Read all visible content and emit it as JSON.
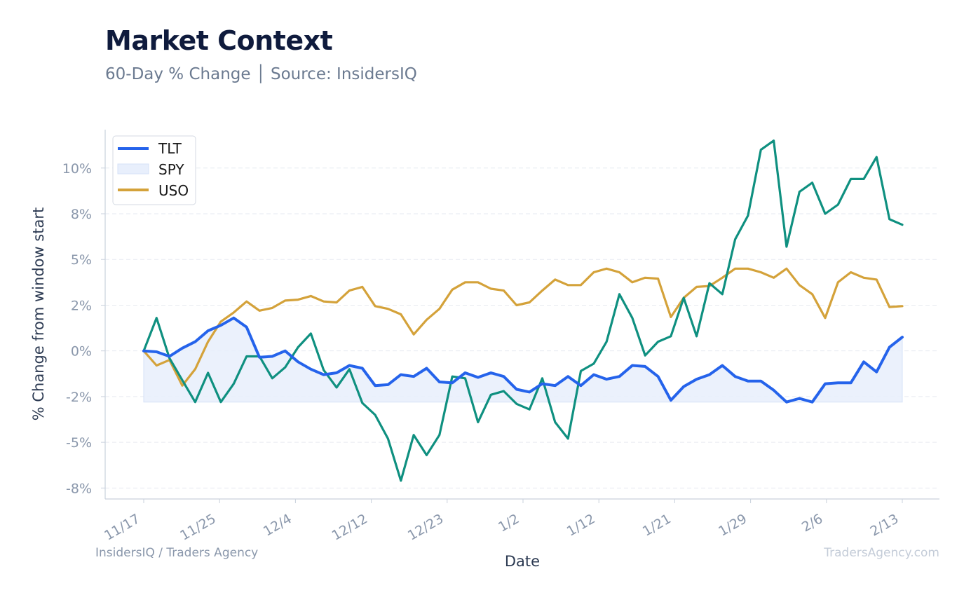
{
  "header": {
    "title": "Market Context",
    "subtitle": "60-Day % Change │ Source: InsidersIQ"
  },
  "footer": {
    "left": "InsidersIQ / Traders Agency",
    "right": "TradersAgency.com"
  },
  "colors": {
    "tlt": "#2563eb",
    "spy_fill": "#e8effc",
    "spy_line": "#0f9080",
    "uso": "#d4a23a",
    "grid": "#e6eaf0",
    "axis": "#c9d1dc"
  },
  "chart_data": {
    "type": "line",
    "xlabel": "Date",
    "ylabel": "% Change from window start",
    "x_ticks": [
      "11/17",
      "11/25",
      "12/4",
      "12/12",
      "12/23",
      "1/2",
      "1/12",
      "1/21",
      "1/29",
      "2/6",
      "2/13"
    ],
    "y_ticks": [
      "10%",
      "8%",
      "5%",
      "2%",
      "0%",
      "-2%",
      "-5%",
      "-8%"
    ],
    "y_tick_values": [
      10,
      7.5,
      5,
      2.5,
      0,
      -2.5,
      -5,
      -7.5
    ],
    "ylim": [
      -8.1,
      12.1
    ],
    "grid": true,
    "legend": {
      "placement": "top-left",
      "items": [
        "TLT",
        "SPY",
        "USO"
      ]
    },
    "series": [
      {
        "name": "TLT",
        "values": [
          0.0,
          -0.05,
          -0.3,
          0.15,
          0.5,
          1.1,
          1.4,
          1.8,
          1.3,
          -0.35,
          -0.3,
          0.0,
          -0.6,
          -1.0,
          -1.3,
          -1.2,
          -0.8,
          -0.95,
          -1.9,
          -1.85,
          -1.3,
          -1.4,
          -0.95,
          -1.7,
          -1.75,
          -1.2,
          -1.45,
          -1.2,
          -1.4,
          -2.1,
          -2.25,
          -1.8,
          -1.9,
          -1.4,
          -1.9,
          -1.3,
          -1.55,
          -1.4,
          -0.8,
          -0.85,
          -1.4,
          -2.7,
          -1.95,
          -1.55,
          -1.3,
          -0.8,
          -1.4,
          -1.65,
          -1.65,
          -2.15,
          -2.8,
          -2.6,
          -2.8,
          -1.8,
          -1.75,
          -1.75,
          -0.6,
          -1.15,
          0.2,
          0.75
        ]
      },
      {
        "name": "SPY",
        "values": [
          0.0,
          1.8,
          -0.4,
          -1.6,
          -2.8,
          -1.2,
          -2.8,
          -1.8,
          -0.3,
          -0.3,
          -1.5,
          -0.9,
          0.2,
          0.95,
          -1.05,
          -2.0,
          -1.0,
          -2.85,
          -3.5,
          -4.8,
          -7.1,
          -4.6,
          -5.7,
          -4.6,
          -1.4,
          -1.5,
          -3.9,
          -2.4,
          -2.2,
          -2.9,
          -3.2,
          -1.5,
          -3.9,
          -4.8,
          -1.1,
          -0.7,
          0.5,
          3.1,
          1.8,
          -0.25,
          0.5,
          0.8,
          2.9,
          0.8,
          3.7,
          3.1,
          6.1,
          7.4,
          11.0,
          11.5,
          5.7,
          8.7,
          9.2,
          7.5,
          8.0,
          9.4,
          9.4,
          10.6,
          7.2,
          6.9
        ]
      },
      {
        "name": "USO",
        "values": [
          0.0,
          -0.8,
          -0.5,
          -1.9,
          -1.0,
          0.5,
          1.6,
          2.1,
          2.7,
          2.2,
          2.35,
          2.75,
          2.8,
          3.0,
          2.7,
          2.65,
          3.3,
          3.5,
          2.45,
          2.3,
          2.0,
          0.9,
          1.7,
          2.3,
          3.35,
          3.75,
          3.75,
          3.4,
          3.3,
          2.5,
          2.65,
          3.3,
          3.9,
          3.6,
          3.6,
          4.3,
          4.5,
          4.3,
          3.75,
          4.0,
          3.95,
          1.85,
          2.9,
          3.5,
          3.55,
          4.0,
          4.5,
          4.5,
          4.3,
          4.0,
          4.5,
          3.6,
          3.1,
          1.8,
          3.75,
          4.3,
          4.0,
          3.9,
          2.4,
          2.45
        ]
      }
    ]
  }
}
